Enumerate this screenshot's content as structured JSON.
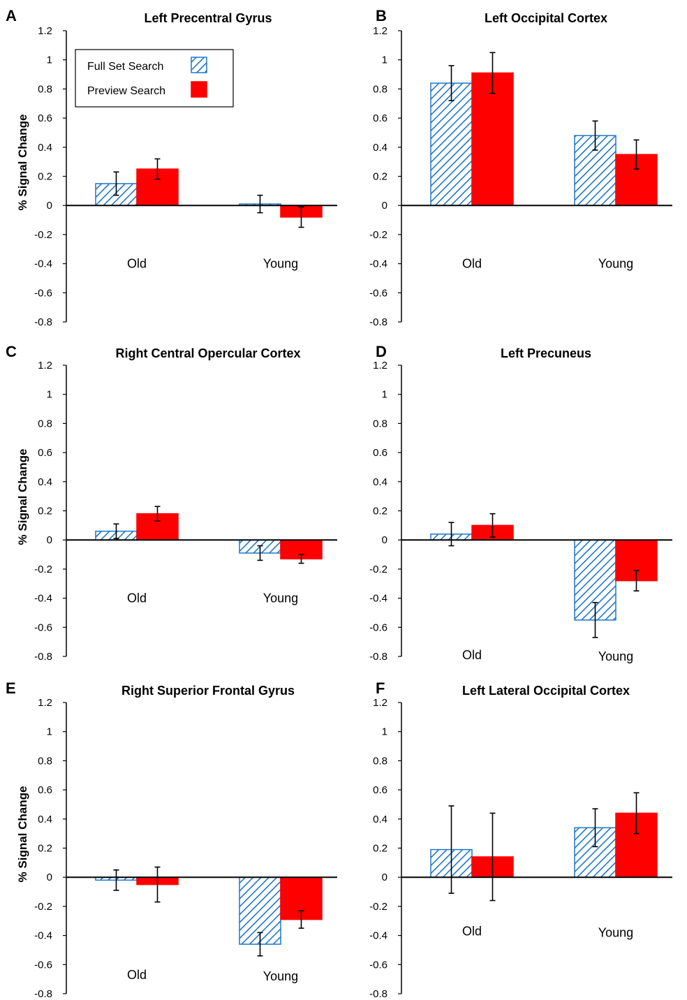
{
  "colors": {
    "full_set_search": "#1f77c8",
    "preview_search": "#ff0000",
    "axis": "#000000",
    "error_bar": "#000000"
  },
  "legend": {
    "items": [
      {
        "label": "Full Set Search",
        "style": "hatched",
        "color": "#1f77c8"
      },
      {
        "label": "Preview Search",
        "style": "solid",
        "color": "#ff0000"
      }
    ]
  },
  "chart_data": [
    {
      "letter": "A",
      "title": "Left Precentral Gyrus",
      "type": "bar",
      "ylabel": "% Signal Change",
      "ylim": [
        -0.8,
        1.2
      ],
      "yticks": [
        "1.2",
        "1",
        "0.8",
        "0.6",
        "0.4",
        "0.2",
        "0",
        "-0.2",
        "-0.4",
        "-0.6",
        "-0.8"
      ],
      "categories": [
        "Old",
        "Young"
      ],
      "series": [
        {
          "name": "Full Set Search",
          "values": [
            0.15,
            0.01
          ],
          "errors": [
            0.08,
            0.06
          ]
        },
        {
          "name": "Preview Search",
          "values": [
            0.25,
            -0.08
          ],
          "errors": [
            0.07,
            0.07
          ]
        }
      ],
      "legend": true
    },
    {
      "letter": "B",
      "title": "Left Occipital Cortex",
      "type": "bar",
      "ylabel": "",
      "ylim": [
        -0.8,
        1.2
      ],
      "yticks": [
        "1.2",
        "1",
        "0.8",
        "0.6",
        "0.4",
        "0.2",
        "0",
        "-0.2",
        "-0.4",
        "-0.6",
        "-0.8"
      ],
      "categories": [
        "Old",
        "Young"
      ],
      "series": [
        {
          "name": "Full Set Search",
          "values": [
            0.84,
            0.48
          ],
          "errors": [
            0.12,
            0.1
          ]
        },
        {
          "name": "Preview Search",
          "values": [
            0.91,
            0.35
          ],
          "errors": [
            0.14,
            0.1
          ]
        }
      ],
      "legend": false
    },
    {
      "letter": "C",
      "title": "Right Central Opercular Cortex",
      "type": "bar",
      "ylabel": "% Signal Change",
      "ylim": [
        -0.8,
        1.2
      ],
      "yticks": [
        "1.2",
        "1",
        "0.8",
        "0.6",
        "0.4",
        "0.2",
        "0",
        "-0.2",
        "-0.4",
        "-0.6",
        "-0.8"
      ],
      "categories": [
        "Old",
        "Young"
      ],
      "series": [
        {
          "name": "Full Set Search",
          "values": [
            0.06,
            -0.09
          ],
          "errors": [
            0.05,
            0.05
          ]
        },
        {
          "name": "Preview Search",
          "values": [
            0.18,
            -0.13
          ],
          "errors": [
            0.05,
            0.03
          ]
        }
      ],
      "legend": false
    },
    {
      "letter": "D",
      "title": "Left Precuneus",
      "type": "bar",
      "ylabel": "",
      "ylim": [
        -0.8,
        1.2
      ],
      "yticks": [
        "1.2",
        "1",
        "0.8",
        "0.6",
        "0.4",
        "0.2",
        "0",
        "-0.2",
        "-0.4",
        "-0.6",
        "-0.8"
      ],
      "categories": [
        "Old",
        "Young"
      ],
      "series": [
        {
          "name": "Full Set Search",
          "values": [
            0.04,
            -0.55
          ],
          "errors": [
            0.08,
            0.12
          ]
        },
        {
          "name": "Preview Search",
          "values": [
            0.1,
            -0.28
          ],
          "errors": [
            0.08,
            0.07
          ]
        }
      ],
      "legend": false
    },
    {
      "letter": "E",
      "title": "Right Superior Frontal Gyrus",
      "type": "bar",
      "ylabel": "% Signal Change",
      "ylim": [
        -0.8,
        1.2
      ],
      "yticks": [
        "1.2",
        "1",
        "0.8",
        "0.6",
        "0.4",
        "0.2",
        "0",
        "-0.2",
        "-0.4",
        "-0.6",
        "-0.8"
      ],
      "categories": [
        "Old",
        "Young"
      ],
      "series": [
        {
          "name": "Full Set Search",
          "values": [
            -0.02,
            -0.46
          ],
          "errors": [
            0.07,
            0.08
          ]
        },
        {
          "name": "Preview Search",
          "values": [
            -0.05,
            -0.29
          ],
          "errors": [
            0.12,
            0.06
          ]
        }
      ],
      "legend": false
    },
    {
      "letter": "F",
      "title": "Left Lateral Occipital Cortex",
      "type": "bar",
      "ylabel": "",
      "ylim": [
        -0.8,
        1.2
      ],
      "yticks": [
        "1.2",
        "1",
        "0.8",
        "0.6",
        "0.4",
        "0.2",
        "0",
        "-0.2",
        "-0.4",
        "-0.6",
        "-0.8"
      ],
      "categories": [
        "Old",
        "Young"
      ],
      "series": [
        {
          "name": "Full Set Search",
          "values": [
            0.19,
            0.34
          ],
          "errors": [
            0.3,
            0.13
          ]
        },
        {
          "name": "Preview Search",
          "values": [
            0.14,
            0.44
          ],
          "errors": [
            0.3,
            0.14
          ]
        }
      ],
      "legend": false
    }
  ]
}
